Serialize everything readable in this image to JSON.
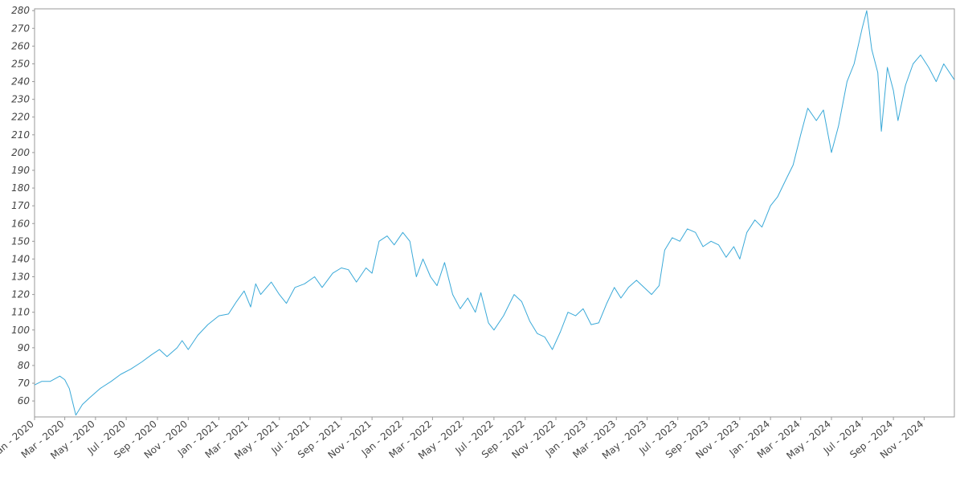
{
  "chart_data": {
    "type": "line",
    "title": "",
    "xlabel": "",
    "ylabel": "",
    "x_start": "2020-01-01",
    "x_end": "2024-12-31",
    "ylim": [
      51,
      281
    ],
    "grid": false,
    "legend": "none",
    "line_color": "#3aa9d8",
    "y_ticks": [
      60,
      70,
      80,
      90,
      100,
      110,
      120,
      130,
      140,
      150,
      160,
      170,
      180,
      190,
      200,
      210,
      220,
      230,
      240,
      250,
      260,
      270,
      280
    ],
    "x_ticks": [
      {
        "label": "Jan - 2020",
        "date": "2020-01-01"
      },
      {
        "label": "Mar - 2020",
        "date": "2020-03-01"
      },
      {
        "label": "May - 2020",
        "date": "2020-05-01"
      },
      {
        "label": "Jul - 2020",
        "date": "2020-07-01"
      },
      {
        "label": "Sep - 2020",
        "date": "2020-09-01"
      },
      {
        "label": "Nov - 2020",
        "date": "2020-11-01"
      },
      {
        "label": "Jan - 2021",
        "date": "2021-01-01"
      },
      {
        "label": "Mar - 2021",
        "date": "2021-03-01"
      },
      {
        "label": "May - 2021",
        "date": "2021-05-01"
      },
      {
        "label": "Jul - 2021",
        "date": "2021-07-01"
      },
      {
        "label": "Sep - 2021",
        "date": "2021-09-01"
      },
      {
        "label": "Nov - 2021",
        "date": "2021-11-01"
      },
      {
        "label": "Jan - 2022",
        "date": "2022-01-01"
      },
      {
        "label": "Mar - 2022",
        "date": "2022-03-01"
      },
      {
        "label": "May - 2022",
        "date": "2022-05-01"
      },
      {
        "label": "Jul - 2022",
        "date": "2022-07-01"
      },
      {
        "label": "Sep - 2022",
        "date": "2022-09-01"
      },
      {
        "label": "Nov - 2022",
        "date": "2022-11-01"
      },
      {
        "label": "Jan - 2023",
        "date": "2023-01-01"
      },
      {
        "label": "Mar - 2023",
        "date": "2023-03-01"
      },
      {
        "label": "May - 2023",
        "date": "2023-05-01"
      },
      {
        "label": "Jul - 2023",
        "date": "2023-07-01"
      },
      {
        "label": "Sep - 2023",
        "date": "2023-09-01"
      },
      {
        "label": "Nov - 2023",
        "date": "2023-11-01"
      },
      {
        "label": "Jan - 2024",
        "date": "2024-01-01"
      },
      {
        "label": "Mar - 2024",
        "date": "2024-03-01"
      },
      {
        "label": "May - 2024",
        "date": "2024-05-01"
      },
      {
        "label": "Jul - 2024",
        "date": "2024-07-01"
      },
      {
        "label": "Sep - 2024",
        "date": "2024-09-01"
      },
      {
        "label": "Nov - 2024",
        "date": "2024-11-01"
      }
    ],
    "series": [
      {
        "points": [
          [
            "2020-01-01",
            69
          ],
          [
            "2020-01-15",
            71
          ],
          [
            "2020-02-01",
            71
          ],
          [
            "2020-02-20",
            74
          ],
          [
            "2020-03-01",
            72
          ],
          [
            "2020-03-10",
            67
          ],
          [
            "2020-03-23",
            52
          ],
          [
            "2020-04-05",
            58
          ],
          [
            "2020-04-20",
            62
          ],
          [
            "2020-05-10",
            67
          ],
          [
            "2020-06-01",
            71
          ],
          [
            "2020-06-20",
            75
          ],
          [
            "2020-07-10",
            78
          ],
          [
            "2020-08-01",
            82
          ],
          [
            "2020-08-20",
            86
          ],
          [
            "2020-09-05",
            89
          ],
          [
            "2020-09-20",
            85
          ],
          [
            "2020-10-10",
            90
          ],
          [
            "2020-10-20",
            94
          ],
          [
            "2020-11-01",
            89
          ],
          [
            "2020-11-20",
            97
          ],
          [
            "2020-12-10",
            103
          ],
          [
            "2021-01-01",
            108
          ],
          [
            "2021-01-20",
            109
          ],
          [
            "2021-02-05",
            116
          ],
          [
            "2021-02-20",
            122
          ],
          [
            "2021-03-05",
            113
          ],
          [
            "2021-03-15",
            126
          ],
          [
            "2021-03-25",
            120
          ],
          [
            "2021-04-15",
            127
          ],
          [
            "2021-05-01",
            120
          ],
          [
            "2021-05-15",
            115
          ],
          [
            "2021-06-01",
            124
          ],
          [
            "2021-06-20",
            126
          ],
          [
            "2021-07-10",
            130
          ],
          [
            "2021-07-25",
            124
          ],
          [
            "2021-08-15",
            132
          ],
          [
            "2021-09-01",
            135
          ],
          [
            "2021-09-15",
            134
          ],
          [
            "2021-10-01",
            127
          ],
          [
            "2021-10-20",
            135
          ],
          [
            "2021-11-01",
            132
          ],
          [
            "2021-11-15",
            150
          ],
          [
            "2021-12-01",
            153
          ],
          [
            "2021-12-15",
            148
          ],
          [
            "2022-01-01",
            155
          ],
          [
            "2022-01-15",
            150
          ],
          [
            "2022-01-28",
            130
          ],
          [
            "2022-02-10",
            140
          ],
          [
            "2022-02-25",
            130
          ],
          [
            "2022-03-10",
            125
          ],
          [
            "2022-03-25",
            138
          ],
          [
            "2022-04-10",
            120
          ],
          [
            "2022-04-25",
            112
          ],
          [
            "2022-05-10",
            118
          ],
          [
            "2022-05-25",
            110
          ],
          [
            "2022-06-05",
            121
          ],
          [
            "2022-06-20",
            104
          ],
          [
            "2022-07-01",
            100
          ],
          [
            "2022-07-20",
            108
          ],
          [
            "2022-08-10",
            120
          ],
          [
            "2022-08-25",
            116
          ],
          [
            "2022-09-10",
            105
          ],
          [
            "2022-09-25",
            98
          ],
          [
            "2022-10-10",
            96
          ],
          [
            "2022-10-25",
            89
          ],
          [
            "2022-11-10",
            99
          ],
          [
            "2022-11-25",
            110
          ],
          [
            "2022-12-10",
            108
          ],
          [
            "2022-12-25",
            112
          ],
          [
            "2023-01-10",
            103
          ],
          [
            "2023-01-25",
            104
          ],
          [
            "2023-02-10",
            115
          ],
          [
            "2023-02-25",
            124
          ],
          [
            "2023-03-10",
            118
          ],
          [
            "2023-03-25",
            124
          ],
          [
            "2023-04-10",
            128
          ],
          [
            "2023-04-25",
            124
          ],
          [
            "2023-05-10",
            120
          ],
          [
            "2023-05-25",
            125
          ],
          [
            "2023-06-05",
            145
          ],
          [
            "2023-06-20",
            152
          ],
          [
            "2023-07-05",
            150
          ],
          [
            "2023-07-20",
            157
          ],
          [
            "2023-08-05",
            155
          ],
          [
            "2023-08-20",
            147
          ],
          [
            "2023-09-05",
            150
          ],
          [
            "2023-09-20",
            148
          ],
          [
            "2023-10-05",
            141
          ],
          [
            "2023-10-20",
            147
          ],
          [
            "2023-11-01",
            140
          ],
          [
            "2023-11-15",
            155
          ],
          [
            "2023-12-01",
            162
          ],
          [
            "2023-12-15",
            158
          ],
          [
            "2024-01-01",
            170
          ],
          [
            "2024-01-15",
            175
          ],
          [
            "2024-02-01",
            185
          ],
          [
            "2024-02-15",
            193
          ],
          [
            "2024-03-01",
            210
          ],
          [
            "2024-03-15",
            225
          ],
          [
            "2024-04-01",
            218
          ],
          [
            "2024-04-15",
            224
          ],
          [
            "2024-05-01",
            200
          ],
          [
            "2024-05-15",
            215
          ],
          [
            "2024-06-01",
            240
          ],
          [
            "2024-06-15",
            250
          ],
          [
            "2024-07-01",
            270
          ],
          [
            "2024-07-10",
            280
          ],
          [
            "2024-07-20",
            258
          ],
          [
            "2024-08-01",
            245
          ],
          [
            "2024-08-08",
            212
          ],
          [
            "2024-08-20",
            248
          ],
          [
            "2024-09-01",
            235
          ],
          [
            "2024-09-10",
            218
          ],
          [
            "2024-09-25",
            238
          ],
          [
            "2024-10-10",
            250
          ],
          [
            "2024-10-25",
            255
          ],
          [
            "2024-11-10",
            248
          ],
          [
            "2024-11-25",
            240
          ],
          [
            "2024-12-10",
            250
          ],
          [
            "2024-12-31",
            241
          ]
        ]
      }
    ]
  }
}
